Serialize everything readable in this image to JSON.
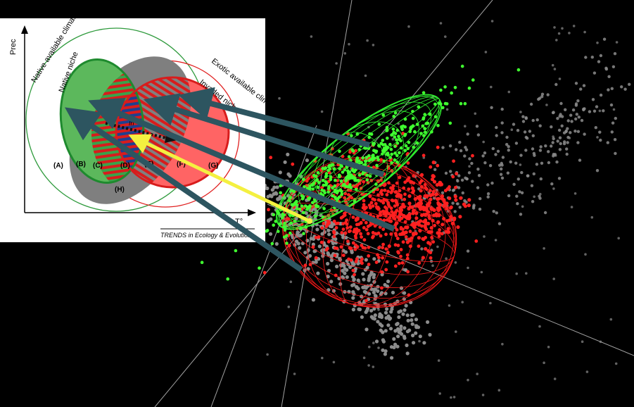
{
  "inset": {
    "y_axis_label": "Prec",
    "x_axis_label": "T°",
    "native_available_climate": "Native available climate",
    "native_niche": "Native niche",
    "exotic_available_climate": "Exotic available climate",
    "invaded_niche": "Invaded niche",
    "shift_label": "In",
    "region_a": "(A)",
    "region_b": "(B)",
    "region_c": "(C)",
    "region_d": "(D)",
    "region_e": "(E)",
    "region_f": "(F)",
    "region_g": "(G)",
    "region_h": "(H)",
    "credit": "TRENDS in Ecology & Evolution"
  },
  "colors": {
    "background": "#000000",
    "inset_bg": "#ffffff",
    "native_green": "#2e9a3c",
    "native_fill": "#5cb85c",
    "invaded_red": "#e02020",
    "invaded_fill": "#ff6464",
    "overlap_gray": "#7f7f7f",
    "stripe_blue": "#1f3f8f",
    "arrow_teal": "#2d5560",
    "arrow_yellow": "#f4f040",
    "points_gray": "#8c8c8c",
    "points_green": "#40ff30",
    "points_red": "#ff2020"
  },
  "icons": [
    "arrow-icon"
  ]
}
